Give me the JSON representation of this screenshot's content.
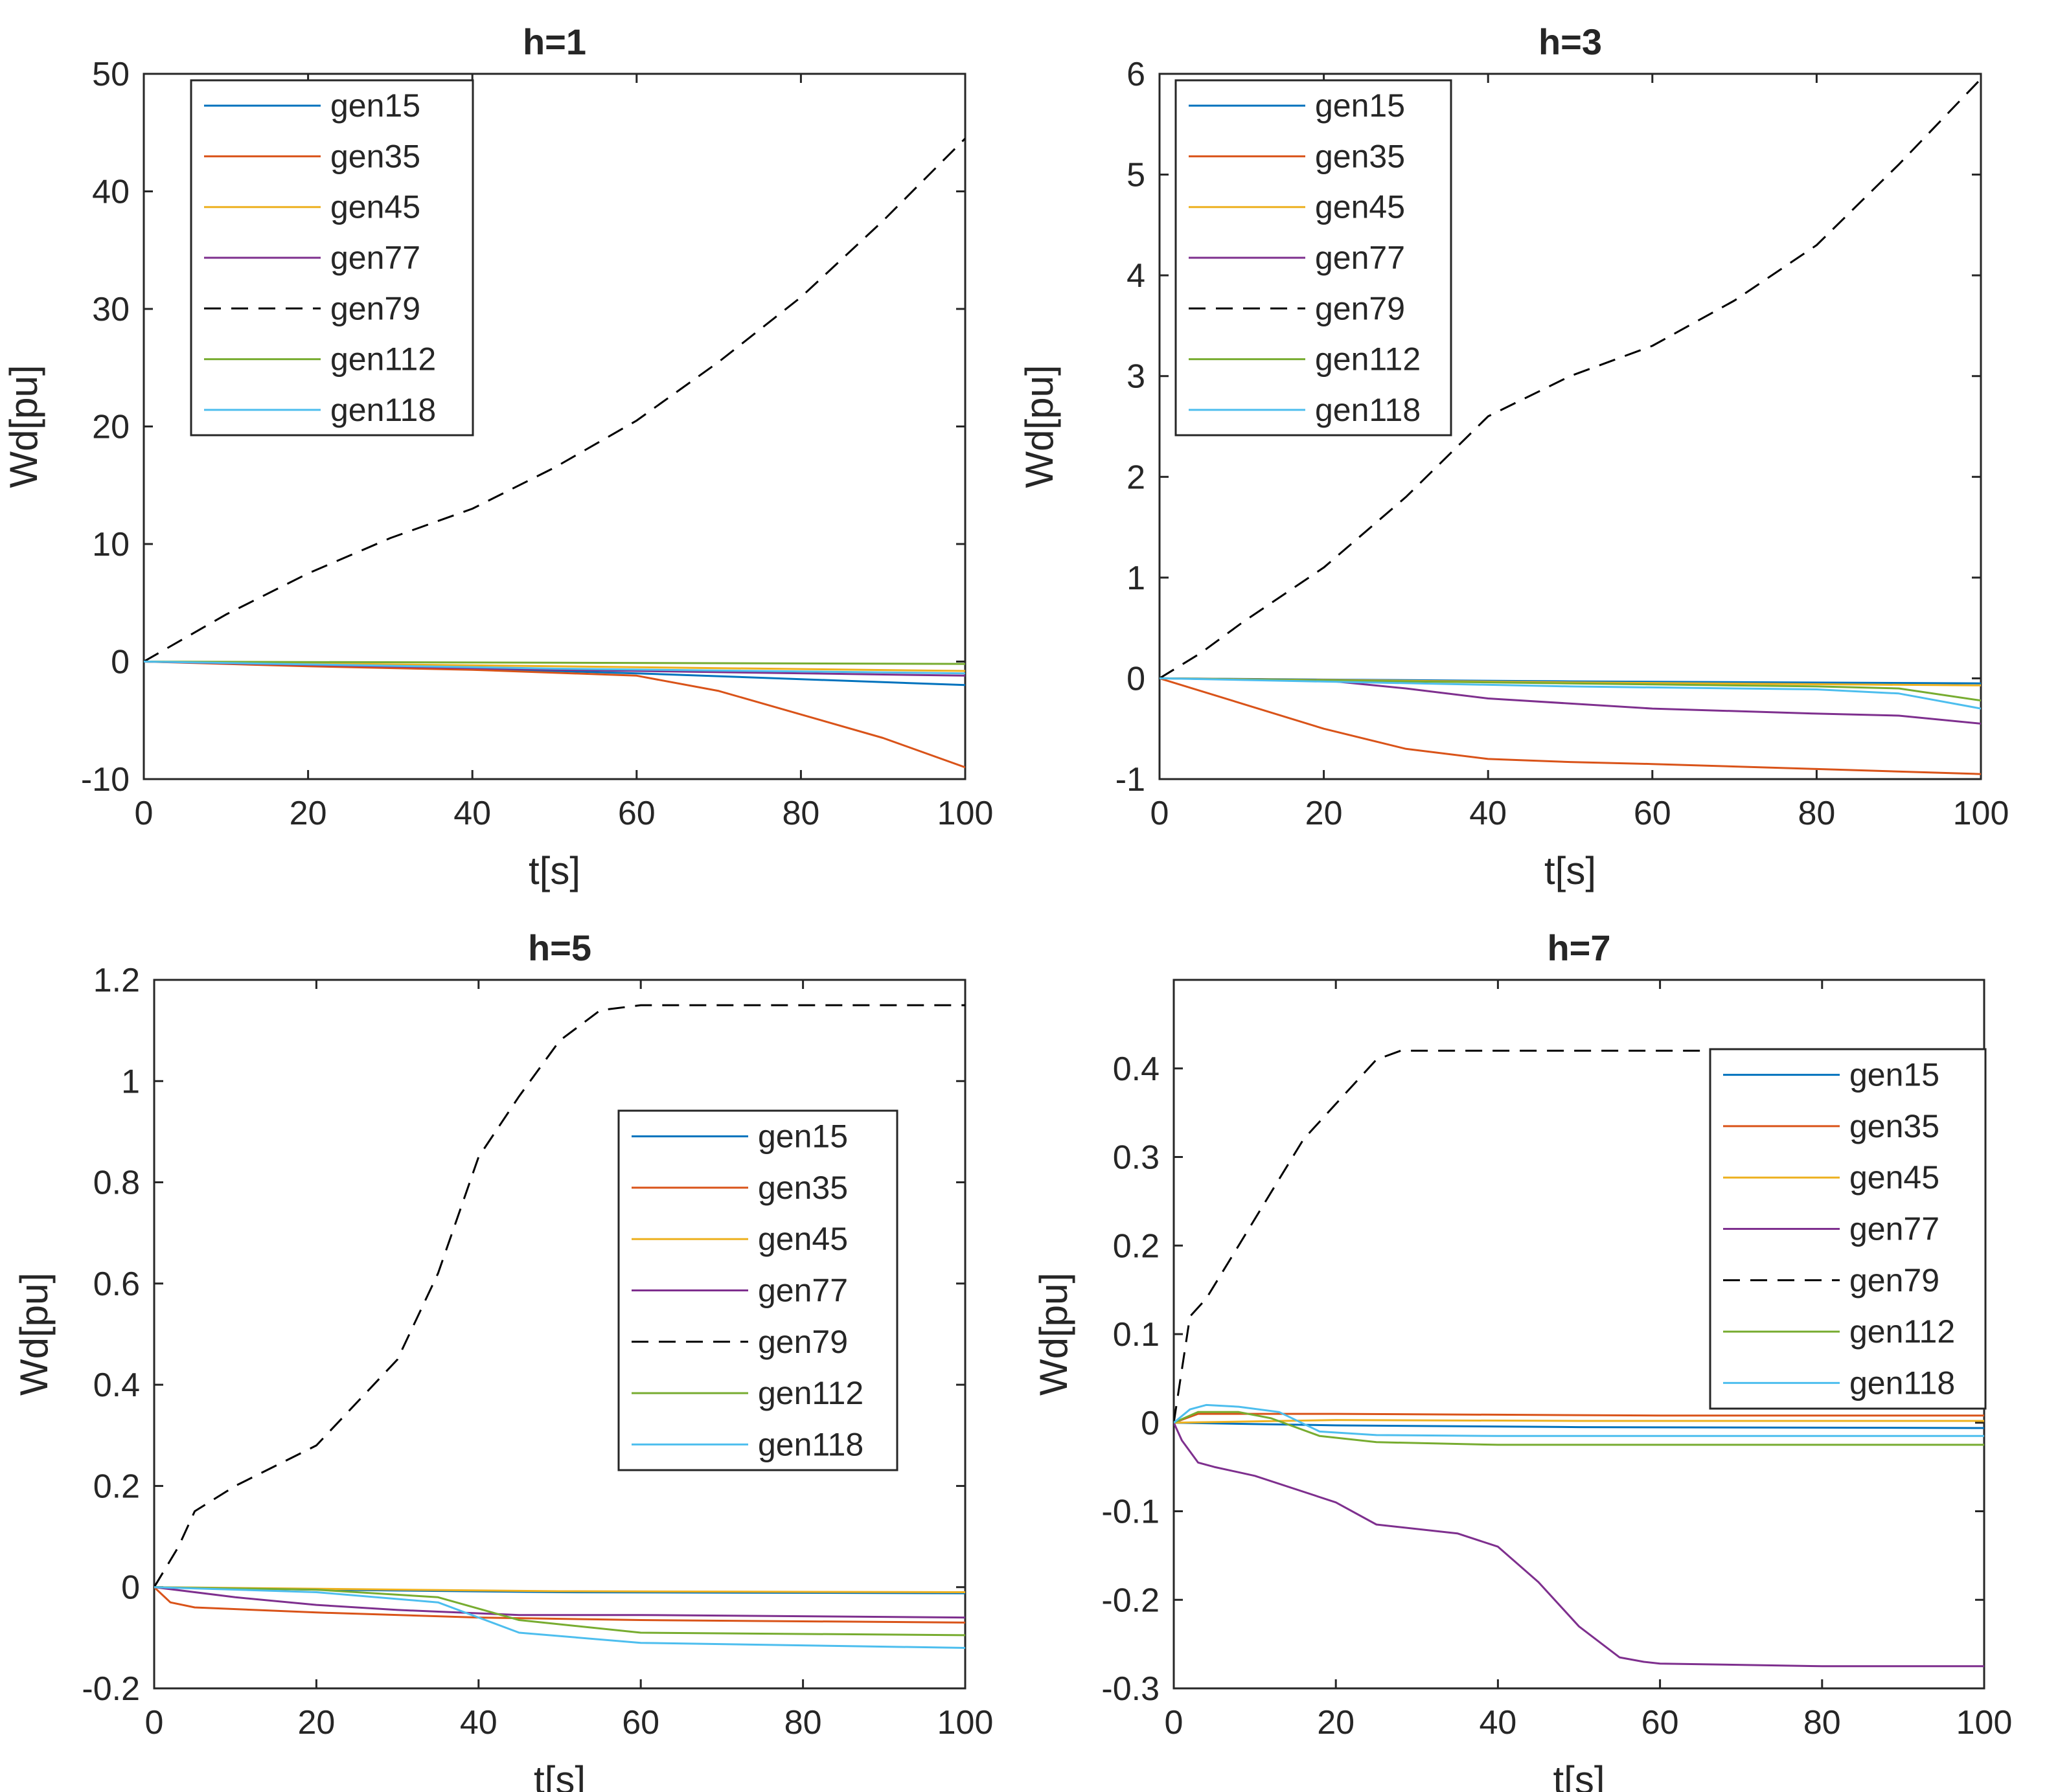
{
  "figure": {
    "series_colors": {
      "gen15": "#0072BD",
      "gen35": "#D95319",
      "gen45": "#EDB120",
      "gen77": "#7E2F8E",
      "gen79": "#000000",
      "gen112": "#77AC30",
      "gen118": "#4DBEEE"
    }
  },
  "chart_data": [
    {
      "type": "line",
      "title": "h=1",
      "xlabel": "t[s]",
      "ylabel": "Wd[pu]",
      "xlim": [
        0,
        100
      ],
      "ylim": [
        -10,
        50
      ],
      "xticks": [
        0,
        20,
        40,
        60,
        80,
        100
      ],
      "yticks": [
        -10,
        0,
        10,
        20,
        30,
        40,
        50
      ],
      "legend_position": "top-left",
      "grid": false,
      "series": [
        {
          "name": "gen15",
          "style": "solid",
          "x": [
            0,
            20,
            40,
            60,
            80,
            100
          ],
          "y": [
            0,
            -0.3,
            -0.6,
            -1.0,
            -1.5,
            -2.0
          ]
        },
        {
          "name": "gen35",
          "style": "solid",
          "x": [
            0,
            20,
            40,
            60,
            70,
            80,
            90,
            100
          ],
          "y": [
            0,
            -0.4,
            -0.7,
            -1.2,
            -2.5,
            -4.5,
            -6.5,
            -9.0
          ]
        },
        {
          "name": "gen45",
          "style": "solid",
          "x": [
            0,
            50,
            100
          ],
          "y": [
            0,
            -0.4,
            -0.8
          ]
        },
        {
          "name": "gen77",
          "style": "solid",
          "x": [
            0,
            50,
            100
          ],
          "y": [
            0,
            -0.7,
            -1.2
          ]
        },
        {
          "name": "gen79",
          "style": "dashed",
          "x": [
            0,
            5,
            10,
            20,
            30,
            40,
            50,
            60,
            70,
            80,
            90,
            100
          ],
          "y": [
            0,
            2.0,
            4.0,
            7.5,
            10.5,
            13.0,
            16.5,
            20.5,
            25.5,
            31.0,
            37.5,
            44.5
          ]
        },
        {
          "name": "gen112",
          "style": "solid",
          "x": [
            0,
            50,
            100
          ],
          "y": [
            0,
            -0.1,
            -0.2
          ]
        },
        {
          "name": "gen118",
          "style": "solid",
          "x": [
            0,
            50,
            100
          ],
          "y": [
            0,
            -0.6,
            -1.0
          ]
        }
      ]
    },
    {
      "type": "line",
      "title": "h=3",
      "xlabel": "t[s]",
      "ylabel": "Wd[pu]",
      "xlim": [
        0,
        100
      ],
      "ylim": [
        -1,
        6
      ],
      "xticks": [
        0,
        20,
        40,
        60,
        80,
        100
      ],
      "yticks": [
        -1,
        0,
        1,
        2,
        3,
        4,
        5,
        6
      ],
      "legend_position": "top-left",
      "grid": false,
      "series": [
        {
          "name": "gen15",
          "style": "solid",
          "x": [
            0,
            50,
            100
          ],
          "y": [
            0,
            -0.03,
            -0.05
          ]
        },
        {
          "name": "gen35",
          "style": "solid",
          "x": [
            0,
            10,
            20,
            30,
            40,
            50,
            60,
            80,
            100
          ],
          "y": [
            0,
            -0.25,
            -0.5,
            -0.7,
            -0.8,
            -0.83,
            -0.85,
            -0.9,
            -0.95
          ]
        },
        {
          "name": "gen45",
          "style": "solid",
          "x": [
            0,
            50,
            100
          ],
          "y": [
            0,
            -0.04,
            -0.07
          ]
        },
        {
          "name": "gen77",
          "style": "solid",
          "x": [
            0,
            20,
            30,
            40,
            60,
            80,
            90,
            100
          ],
          "y": [
            0,
            -0.02,
            -0.1,
            -0.2,
            -0.3,
            -0.35,
            -0.37,
            -0.45
          ]
        },
        {
          "name": "gen79",
          "style": "dashed",
          "x": [
            0,
            5,
            10,
            20,
            30,
            40,
            50,
            60,
            70,
            80,
            90,
            100
          ],
          "y": [
            0,
            0.25,
            0.55,
            1.1,
            1.8,
            2.6,
            3.0,
            3.3,
            3.75,
            4.3,
            5.1,
            5.95
          ]
        },
        {
          "name": "gen112",
          "style": "solid",
          "x": [
            0,
            50,
            80,
            90,
            100
          ],
          "y": [
            0,
            -0.05,
            -0.08,
            -0.1,
            -0.22
          ]
        },
        {
          "name": "gen118",
          "style": "solid",
          "x": [
            0,
            50,
            80,
            90,
            100
          ],
          "y": [
            0,
            -0.08,
            -0.11,
            -0.15,
            -0.3
          ]
        }
      ]
    },
    {
      "type": "line",
      "title": "h=5",
      "xlabel": "t[s]",
      "ylabel": "Wd[pu]",
      "xlim": [
        0,
        100
      ],
      "ylim": [
        -0.2,
        1.2
      ],
      "xticks": [
        0,
        20,
        40,
        60,
        80,
        100
      ],
      "yticks": [
        -0.2,
        0,
        0.2,
        0.4,
        0.6,
        0.8,
        1,
        1.2
      ],
      "ytick_labels": [
        "-0.2",
        "0",
        "0.2",
        "0.4",
        "0.6",
        "0.8",
        "1",
        "1.2"
      ],
      "legend_position": "center-right",
      "grid": false,
      "series": [
        {
          "name": "gen15",
          "style": "solid",
          "x": [
            0,
            20,
            50,
            100
          ],
          "y": [
            0,
            -0.005,
            -0.01,
            -0.012
          ]
        },
        {
          "name": "gen35",
          "style": "solid",
          "x": [
            0,
            2,
            5,
            20,
            40,
            60,
            100
          ],
          "y": [
            0,
            -0.03,
            -0.04,
            -0.05,
            -0.06,
            -0.065,
            -0.07
          ]
        },
        {
          "name": "gen45",
          "style": "solid",
          "x": [
            0,
            50,
            100
          ],
          "y": [
            0,
            -0.008,
            -0.01
          ]
        },
        {
          "name": "gen77",
          "style": "solid",
          "x": [
            0,
            10,
            20,
            30,
            45,
            60,
            100
          ],
          "y": [
            0,
            -0.02,
            -0.035,
            -0.045,
            -0.055,
            -0.055,
            -0.06
          ]
        },
        {
          "name": "gen79",
          "style": "dashed",
          "x": [
            0,
            3,
            5,
            10,
            20,
            30,
            35,
            40,
            45,
            50,
            55,
            60,
            80,
            100
          ],
          "y": [
            0,
            0.08,
            0.15,
            0.2,
            0.28,
            0.45,
            0.62,
            0.85,
            0.97,
            1.08,
            1.14,
            1.15,
            1.15,
            1.15
          ]
        },
        {
          "name": "gen112",
          "style": "solid",
          "x": [
            0,
            20,
            35,
            45,
            60,
            100
          ],
          "y": [
            0,
            -0.005,
            -0.02,
            -0.065,
            -0.09,
            -0.095
          ]
        },
        {
          "name": "gen118",
          "style": "solid",
          "x": [
            0,
            20,
            35,
            40,
            45,
            60,
            100
          ],
          "y": [
            0,
            -0.01,
            -0.03,
            -0.06,
            -0.09,
            -0.11,
            -0.12
          ]
        }
      ]
    },
    {
      "type": "line",
      "title": "h=7",
      "xlabel": "t[s]",
      "ylabel": "Wd[pu]",
      "xlim": [
        0,
        100
      ],
      "ylim": [
        -0.3,
        0.5
      ],
      "xticks": [
        0,
        20,
        40,
        60,
        80,
        100
      ],
      "yticks": [
        -0.3,
        -0.2,
        -0.1,
        0,
        0.1,
        0.2,
        0.3,
        0.4
      ],
      "ytick_labels": [
        "-0.3",
        "-0.2",
        "-0.1",
        "0",
        "0.1",
        "0.2",
        "0.3",
        "0.4"
      ],
      "legend_position": "top-right",
      "grid": false,
      "series": [
        {
          "name": "gen15",
          "style": "solid",
          "x": [
            0,
            20,
            50,
            100
          ],
          "y": [
            0,
            -0.003,
            -0.005,
            -0.006
          ]
        },
        {
          "name": "gen35",
          "style": "solid",
          "x": [
            0,
            3,
            20,
            60,
            100
          ],
          "y": [
            0,
            0.01,
            0.01,
            0.008,
            0.008
          ]
        },
        {
          "name": "gen45",
          "style": "solid",
          "x": [
            0,
            20,
            50,
            100
          ],
          "y": [
            0,
            0.003,
            0.002,
            0.002
          ]
        },
        {
          "name": "gen77",
          "style": "solid",
          "x": [
            0,
            1,
            3,
            5,
            10,
            20,
            25,
            35,
            40,
            45,
            50,
            55,
            58,
            60,
            80,
            100
          ],
          "y": [
            0,
            -0.02,
            -0.045,
            -0.05,
            -0.06,
            -0.09,
            -0.115,
            -0.125,
            -0.14,
            -0.18,
            -0.23,
            -0.265,
            -0.27,
            -0.272,
            -0.275,
            -0.275
          ]
        },
        {
          "name": "gen79",
          "style": "dashed",
          "x": [
            0,
            1,
            2,
            4,
            8,
            12,
            16,
            20,
            25,
            28,
            40,
            60,
            80,
            100
          ],
          "y": [
            0,
            0.06,
            0.12,
            0.14,
            0.2,
            0.26,
            0.32,
            0.36,
            0.41,
            0.42,
            0.42,
            0.42,
            0.42,
            0.42
          ]
        },
        {
          "name": "gen112",
          "style": "solid",
          "x": [
            0,
            3,
            8,
            12,
            18,
            25,
            40,
            100
          ],
          "y": [
            0,
            0.012,
            0.012,
            0.005,
            -0.015,
            -0.022,
            -0.025,
            -0.025
          ]
        },
        {
          "name": "gen118",
          "style": "solid",
          "x": [
            0,
            2,
            4,
            8,
            13,
            18,
            25,
            40,
            100
          ],
          "y": [
            0,
            0.015,
            0.02,
            0.018,
            0.012,
            -0.01,
            -0.014,
            -0.015,
            -0.015
          ]
        }
      ]
    }
  ]
}
